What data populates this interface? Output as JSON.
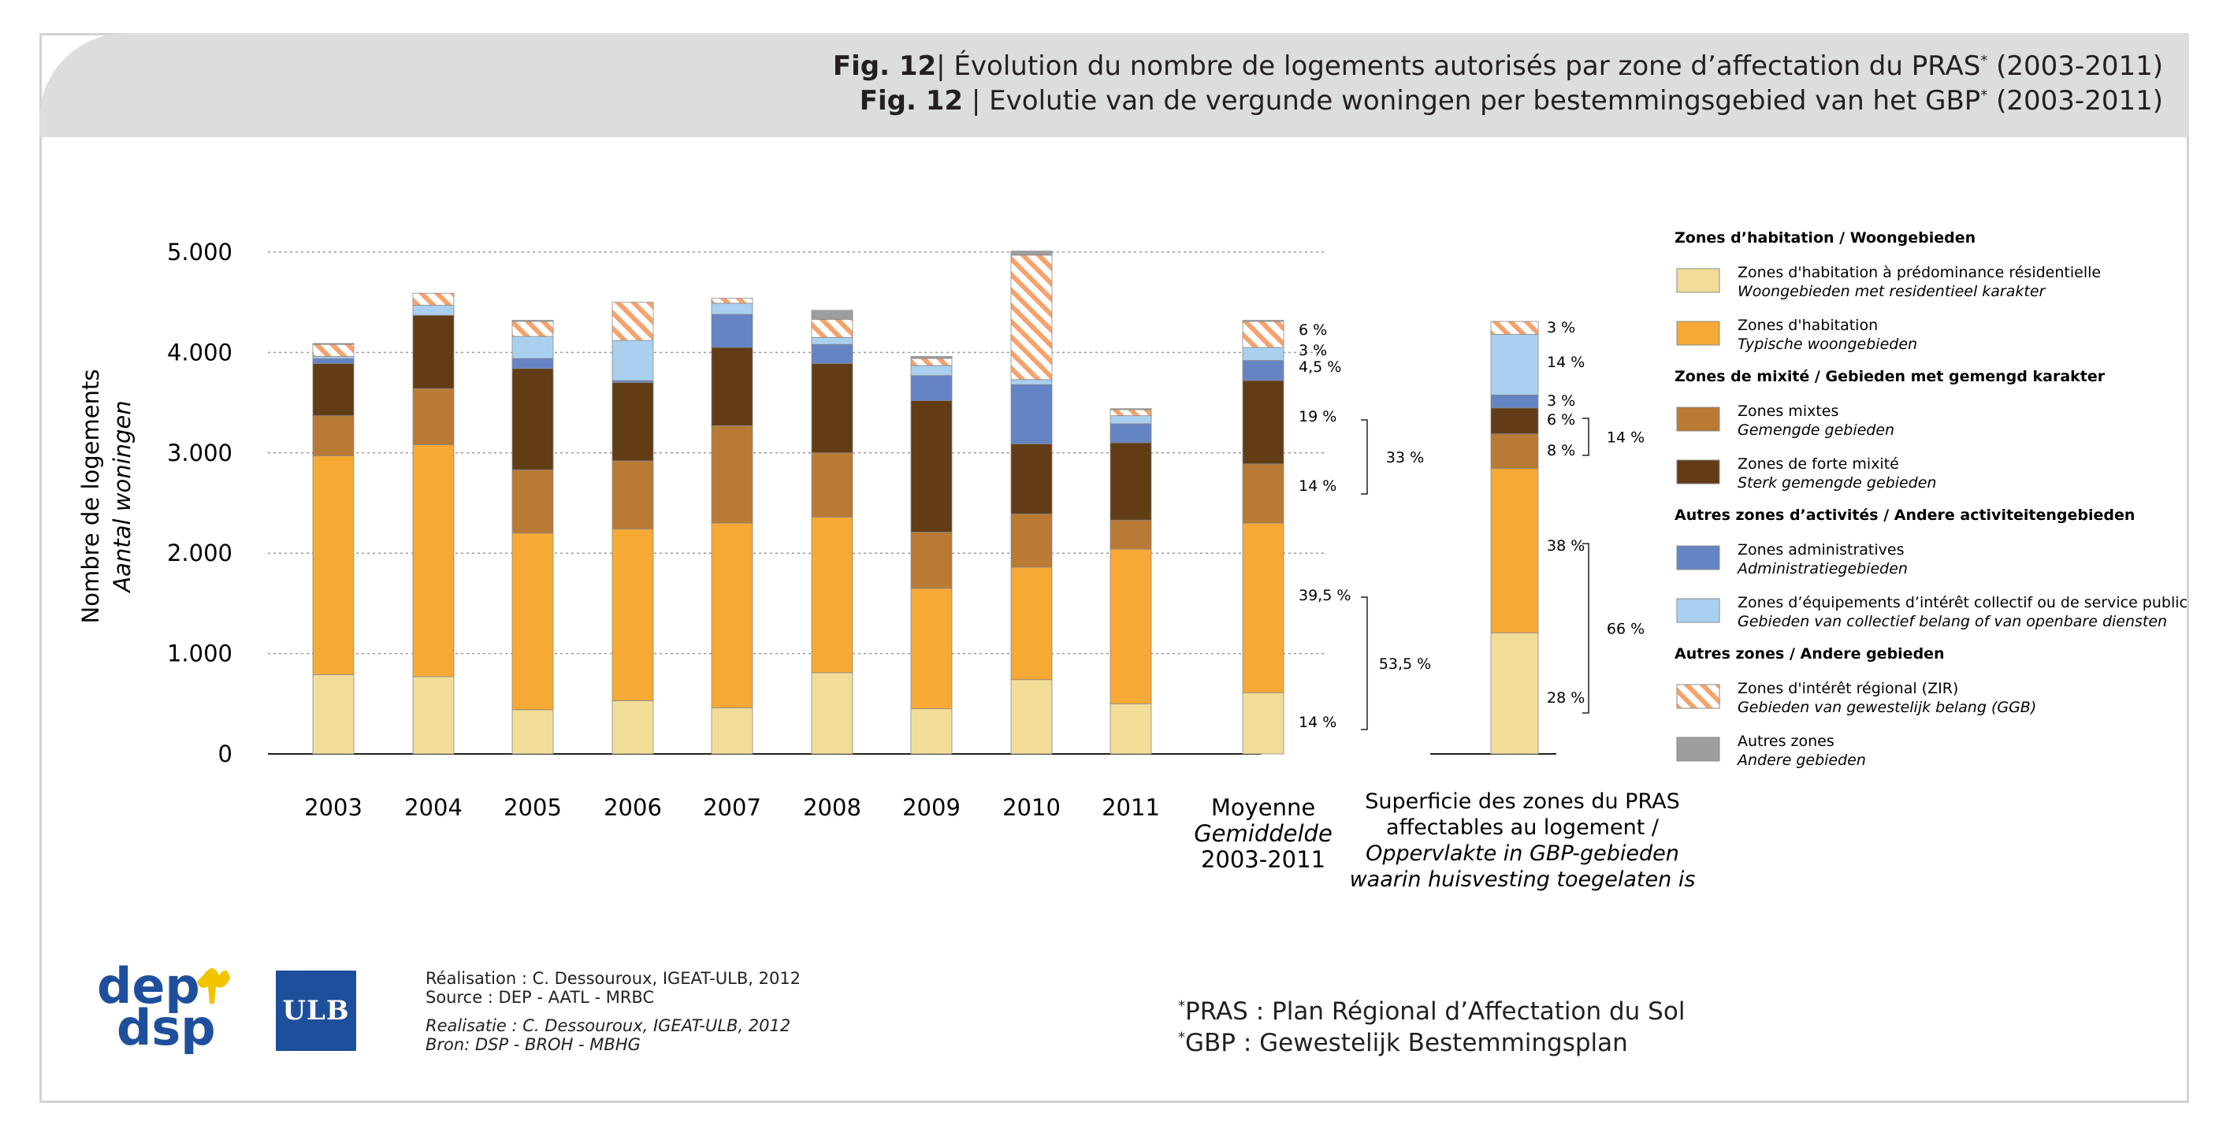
{
  "header": {
    "fig_label_fr": "Fig. 12",
    "title_fr": "| Évolution du nombre de logements autorisés par zone d’affectation du PRAS",
    "title_fr_tail": " (2003-2011)",
    "fig_label_nl": "Fig. 12",
    "title_nl": " | Evolutie van de vergunde woningen per bestemmingsgebied van het GBP",
    "title_nl_tail": " (2003-2011)",
    "asterisk": "*"
  },
  "colors": {
    "residential": "#f1dd98",
    "habitation": "#f6a934",
    "mixed": "#b87a34",
    "strong_mixed": "#613c15",
    "administrative": "#6584c4",
    "equipment": "#aad0ef",
    "zir_stripe": "#f5a26d",
    "other": "#9e9e9e"
  },
  "chart_data": {
    "type": "bar",
    "stacked": true,
    "ylabel": "Nombre de logements",
    "ylabel_nl": "Aantal woningen",
    "ylim": [
      0,
      5000
    ],
    "yticks": [
      0,
      1000,
      2000,
      3000,
      4000,
      5000
    ],
    "ytick_labels": [
      "0",
      "1.000",
      "2.000",
      "3.000",
      "4.000",
      "5.000"
    ],
    "categories": [
      "2003",
      "2004",
      "2005",
      "2006",
      "2007",
      "2008",
      "2009",
      "2010",
      "2011",
      "Moyenne"
    ],
    "category_sublabels": [
      "Gemiddelde",
      "2003-2011"
    ],
    "series": [
      {
        "key": "residential",
        "name": "Zones d'habitation à prédominance résidentielle",
        "values": [
          790,
          770,
          440,
          530,
          460,
          810,
          450,
          740,
          500,
          610
        ]
      },
      {
        "key": "habitation",
        "name": "Zones d'habitation",
        "values": [
          2180,
          2310,
          1760,
          1710,
          1840,
          1550,
          1200,
          1120,
          1540,
          1690
        ]
      },
      {
        "key": "mixed",
        "name": "Zones mixtes",
        "values": [
          400,
          560,
          630,
          680,
          970,
          640,
          560,
          530,
          290,
          590
        ]
      },
      {
        "key": "strong_mixed",
        "name": "Zones de forte mixité",
        "values": [
          520,
          730,
          1010,
          780,
          780,
          890,
          1310,
          700,
          770,
          830
        ]
      },
      {
        "key": "administrative",
        "name": "Zones administratives",
        "values": [
          50,
          0,
          100,
          20,
          330,
          190,
          250,
          590,
          190,
          200
        ]
      },
      {
        "key": "equipment",
        "name": "Zones d’équipements d’intérêt collectif ou de service public",
        "values": [
          20,
          100,
          220,
          400,
          110,
          70,
          100,
          50,
          80,
          130
        ]
      },
      {
        "key": "zir",
        "name": "Zones d'intérêt régional (ZIR)",
        "values": [
          120,
          120,
          150,
          380,
          50,
          180,
          70,
          1240,
          60,
          260
        ]
      },
      {
        "key": "other",
        "name": "Autres zones",
        "values": [
          10,
          0,
          10,
          0,
          0,
          90,
          20,
          40,
          10,
          10
        ]
      }
    ],
    "average_labels": {
      "segments": [
        "14 %",
        "39,5 %",
        "14 %",
        "19 %",
        "4,5 %",
        "3 %",
        "6 %"
      ],
      "groups": [
        "53,5 %",
        "33 %"
      ]
    },
    "surface": {
      "title_fr": [
        "Superficie des zones du PRAS",
        "affectables au logement /"
      ],
      "title_nl": [
        "Oppervlakte in GBP-gebieden",
        "waarin huisvesting toegelaten is"
      ],
      "values_pct": [
        28,
        38,
        8,
        6,
        3,
        14,
        3
      ],
      "segment_labels": [
        "28 %",
        "38 %",
        "8 %",
        "6 %",
        "3 %",
        "14 %",
        "3 %"
      ],
      "groups": [
        "66 %",
        "14 %"
      ]
    }
  },
  "legend": {
    "groups": [
      {
        "title": "Zones d’habitation / Woongebieden",
        "items": [
          {
            "key": "residential",
            "fr": "Zones d'habitation à prédominance résidentielle",
            "nl": "Woongebieden met residentieel karakter"
          },
          {
            "key": "habitation",
            "fr": "Zones d'habitation",
            "nl": "Typische woongebieden"
          }
        ]
      },
      {
        "title": "Zones de mixité / Gebieden met gemengd karakter",
        "items": [
          {
            "key": "mixed",
            "fr": "Zones mixtes",
            "nl": "Gemengde gebieden"
          },
          {
            "key": "strong_mixed",
            "fr": "Zones de forte mixité",
            "nl": "Sterk gemengde gebieden"
          }
        ]
      },
      {
        "title": "Autres zones d’activités / Andere activiteitengebieden",
        "items": [
          {
            "key": "administrative",
            "fr": "Zones administratives",
            "nl": "Administratiegebieden"
          },
          {
            "key": "equipment",
            "fr": "Zones d’équipements d’intérêt collectif ou de service public",
            "nl": "Gebieden van collectief belang of van openbare diensten"
          }
        ]
      },
      {
        "title": "Autres zones / Andere gebieden",
        "items": [
          {
            "key": "zir",
            "fr": "Zones d'intérêt régional (ZIR)",
            "nl": "Gebieden van gewestelijk belang (GGB)"
          },
          {
            "key": "other",
            "fr": "Autres zones",
            "nl": "Andere gebieden"
          }
        ]
      }
    ]
  },
  "credits": {
    "fr1": "Réalisation : C. Dessouroux, IGEAT-ULB, 2012",
    "fr2": "Source : DEP - AATL - MRBC",
    "nl1": "Realisatie : C. Dessouroux, IGEAT-ULB, 2012",
    "nl2": "Bron: DSP - BROH - MBHG"
  },
  "footnotes": {
    "pras": "PRAS :  Plan Régional d’Affectation du Sol",
    "gbp": "GBP   :  Gewestelijk Bestemmingsplan"
  },
  "logos": {
    "dep_top": "dep",
    "dep_bottom": "dsp",
    "ulb": "ULB"
  }
}
